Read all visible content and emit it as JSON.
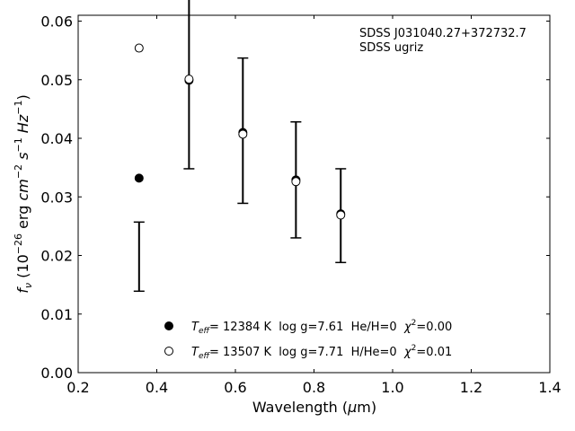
{
  "chart_data": {
    "type": "scatter",
    "title": "",
    "xlabel": "Wavelength (μm)",
    "ylabel": "fν (10⁻²⁶ erg cm⁻² s⁻¹ Hz⁻¹)",
    "xlim": [
      0.2,
      1.4
    ],
    "ylim": [
      0.0,
      0.061
    ],
    "x_ticks": [
      "0.2",
      "0.4",
      "0.6",
      "0.8",
      "1.0",
      "1.2",
      "1.4"
    ],
    "y_ticks": [
      "0.00",
      "0.01",
      "0.02",
      "0.03",
      "0.04",
      "0.05",
      "0.06"
    ],
    "grid": false,
    "annotation": [
      "SDSS J031040.27+372732.7",
      "SDSS ugriz"
    ],
    "observed": {
      "x": [
        0.355,
        0.482,
        0.619,
        0.754,
        0.868
      ],
      "y": [
        0.0198,
        0.0505,
        0.0413,
        0.0329,
        0.0268
      ],
      "yerr": [
        0.0059,
        0.0157,
        0.0124,
        0.0099,
        0.008
      ],
      "color": "#000000"
    },
    "series": [
      {
        "marker": "filled-circle",
        "x": [
          0.355,
          0.482,
          0.619,
          0.754,
          0.868
        ],
        "y": [
          0.0332,
          0.0499,
          0.041,
          0.0329,
          0.0271
        ],
        "color": "#000000"
      },
      {
        "marker": "open-circle",
        "x": [
          0.355,
          0.482,
          0.619,
          0.754,
          0.868
        ],
        "y": [
          0.0554,
          0.0501,
          0.0407,
          0.0326,
          0.0269
        ],
        "color": "#000000"
      }
    ],
    "legend": {
      "placement": "lower-center",
      "entries": [
        {
          "marker": "filled-circle",
          "t_symbol": "T",
          "t_sub": "eff",
          "text": "= 12384 K  log g=7.61  He/H=0  ",
          "chi_symbol": "χ",
          "chi_sup": "2",
          "chi_value": "=0.00"
        },
        {
          "marker": "open-circle",
          "t_symbol": "T",
          "t_sub": "eff",
          "text": "= 13507 K  log g=7.71  H/He=0  ",
          "chi_symbol": "χ",
          "chi_sup": "2",
          "chi_value": "=0.01"
        }
      ]
    }
  }
}
